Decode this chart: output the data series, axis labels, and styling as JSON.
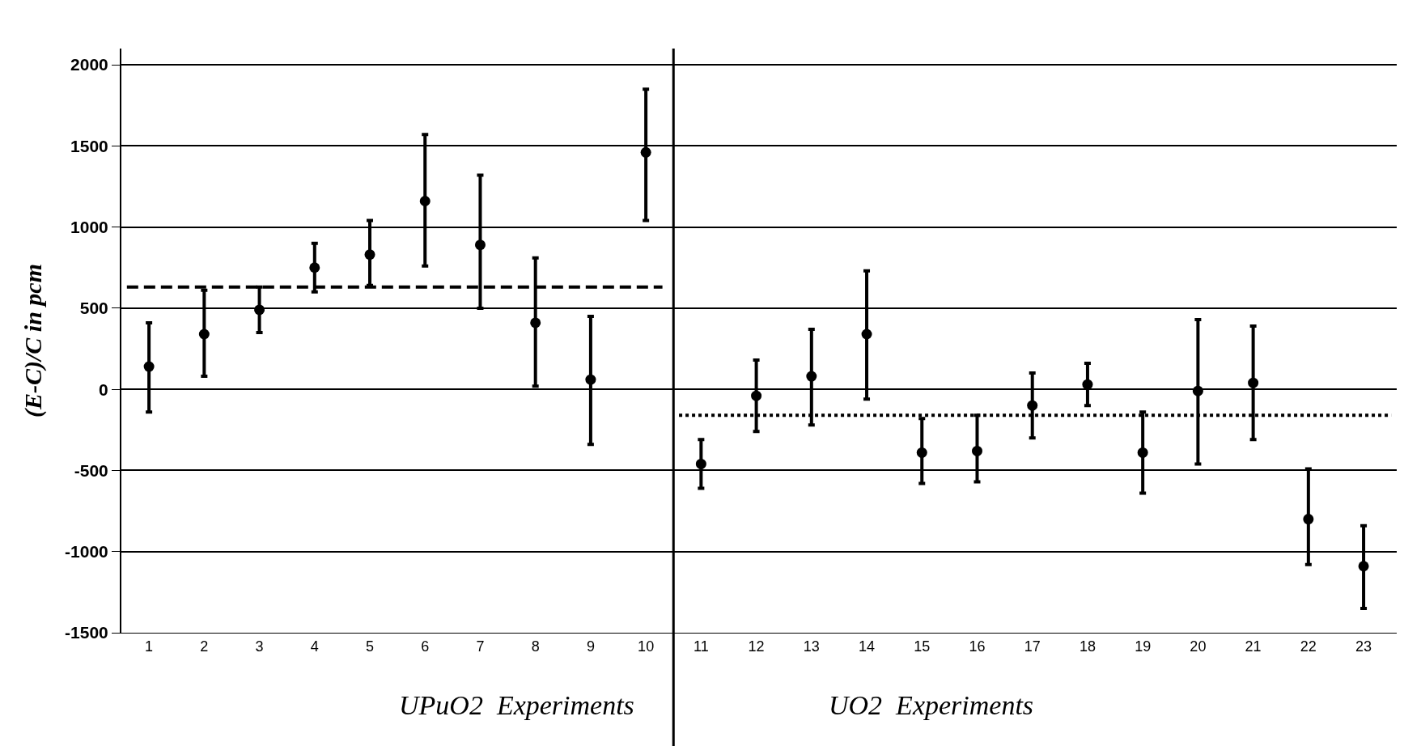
{
  "chart_data": {
    "type": "scatter",
    "ylabel": "(E-C)/C in pcm",
    "annotations": [
      "UPuO2  Experiments",
      "UO2  Experiments"
    ],
    "x": [
      1,
      2,
      3,
      4,
      5,
      6,
      7,
      8,
      9,
      10,
      11,
      12,
      13,
      14,
      15,
      16,
      17,
      18,
      19,
      20,
      21,
      22,
      23
    ],
    "xlim": [
      0.5,
      23.6
    ],
    "xticks": [
      1,
      2,
      3,
      4,
      5,
      6,
      7,
      8,
      9,
      10,
      11,
      12,
      13,
      14,
      15,
      16,
      17,
      18,
      19,
      20,
      21,
      22,
      23
    ],
    "ylim": [
      -1500,
      2100
    ],
    "yticks": [
      -1500,
      -1000,
      -500,
      0,
      500,
      1000,
      1500,
      2000
    ],
    "grid": "y",
    "series": [
      {
        "color": "#000000",
        "marker": "circle",
        "values": [
          140,
          340,
          490,
          750,
          830,
          1160,
          890,
          410,
          60,
          1460,
          -460,
          -40,
          80,
          340,
          -390,
          -380,
          -100,
          30,
          -390,
          -10,
          40,
          -800,
          -1090
        ],
        "errors": [
          [
            -140,
            410
          ],
          [
            80,
            610
          ],
          [
            350,
            630
          ],
          [
            600,
            900
          ],
          [
            640,
            1040
          ],
          [
            760,
            1570
          ],
          [
            500,
            1320
          ],
          [
            20,
            810
          ],
          [
            -340,
            450
          ],
          [
            1040,
            1850
          ],
          [
            -610,
            -310
          ],
          [
            -260,
            180
          ],
          [
            -220,
            370
          ],
          [
            -60,
            730
          ],
          [
            -580,
            -180
          ],
          [
            -570,
            -160
          ],
          [
            -300,
            100
          ],
          [
            -100,
            160
          ],
          [
            -640,
            -140
          ],
          [
            -460,
            430
          ],
          [
            -310,
            390
          ],
          [
            -1080,
            -490
          ],
          [
            -1350,
            -840
          ]
        ]
      },
      {
        "type": "line",
        "color": "#000000",
        "line_style": "dashed",
        "x": [
          0.6,
          10.3
        ],
        "values": [
          630,
          630
        ]
      },
      {
        "type": "line",
        "color": "#000000",
        "line_style": "dotted",
        "x": [
          10.6,
          23.5
        ],
        "values": [
          -160,
          -160
        ]
      }
    ],
    "ref_lines": [
      {
        "axis": "x",
        "value": 10.5,
        "color": "#000000",
        "line_style": "solid"
      }
    ]
  }
}
